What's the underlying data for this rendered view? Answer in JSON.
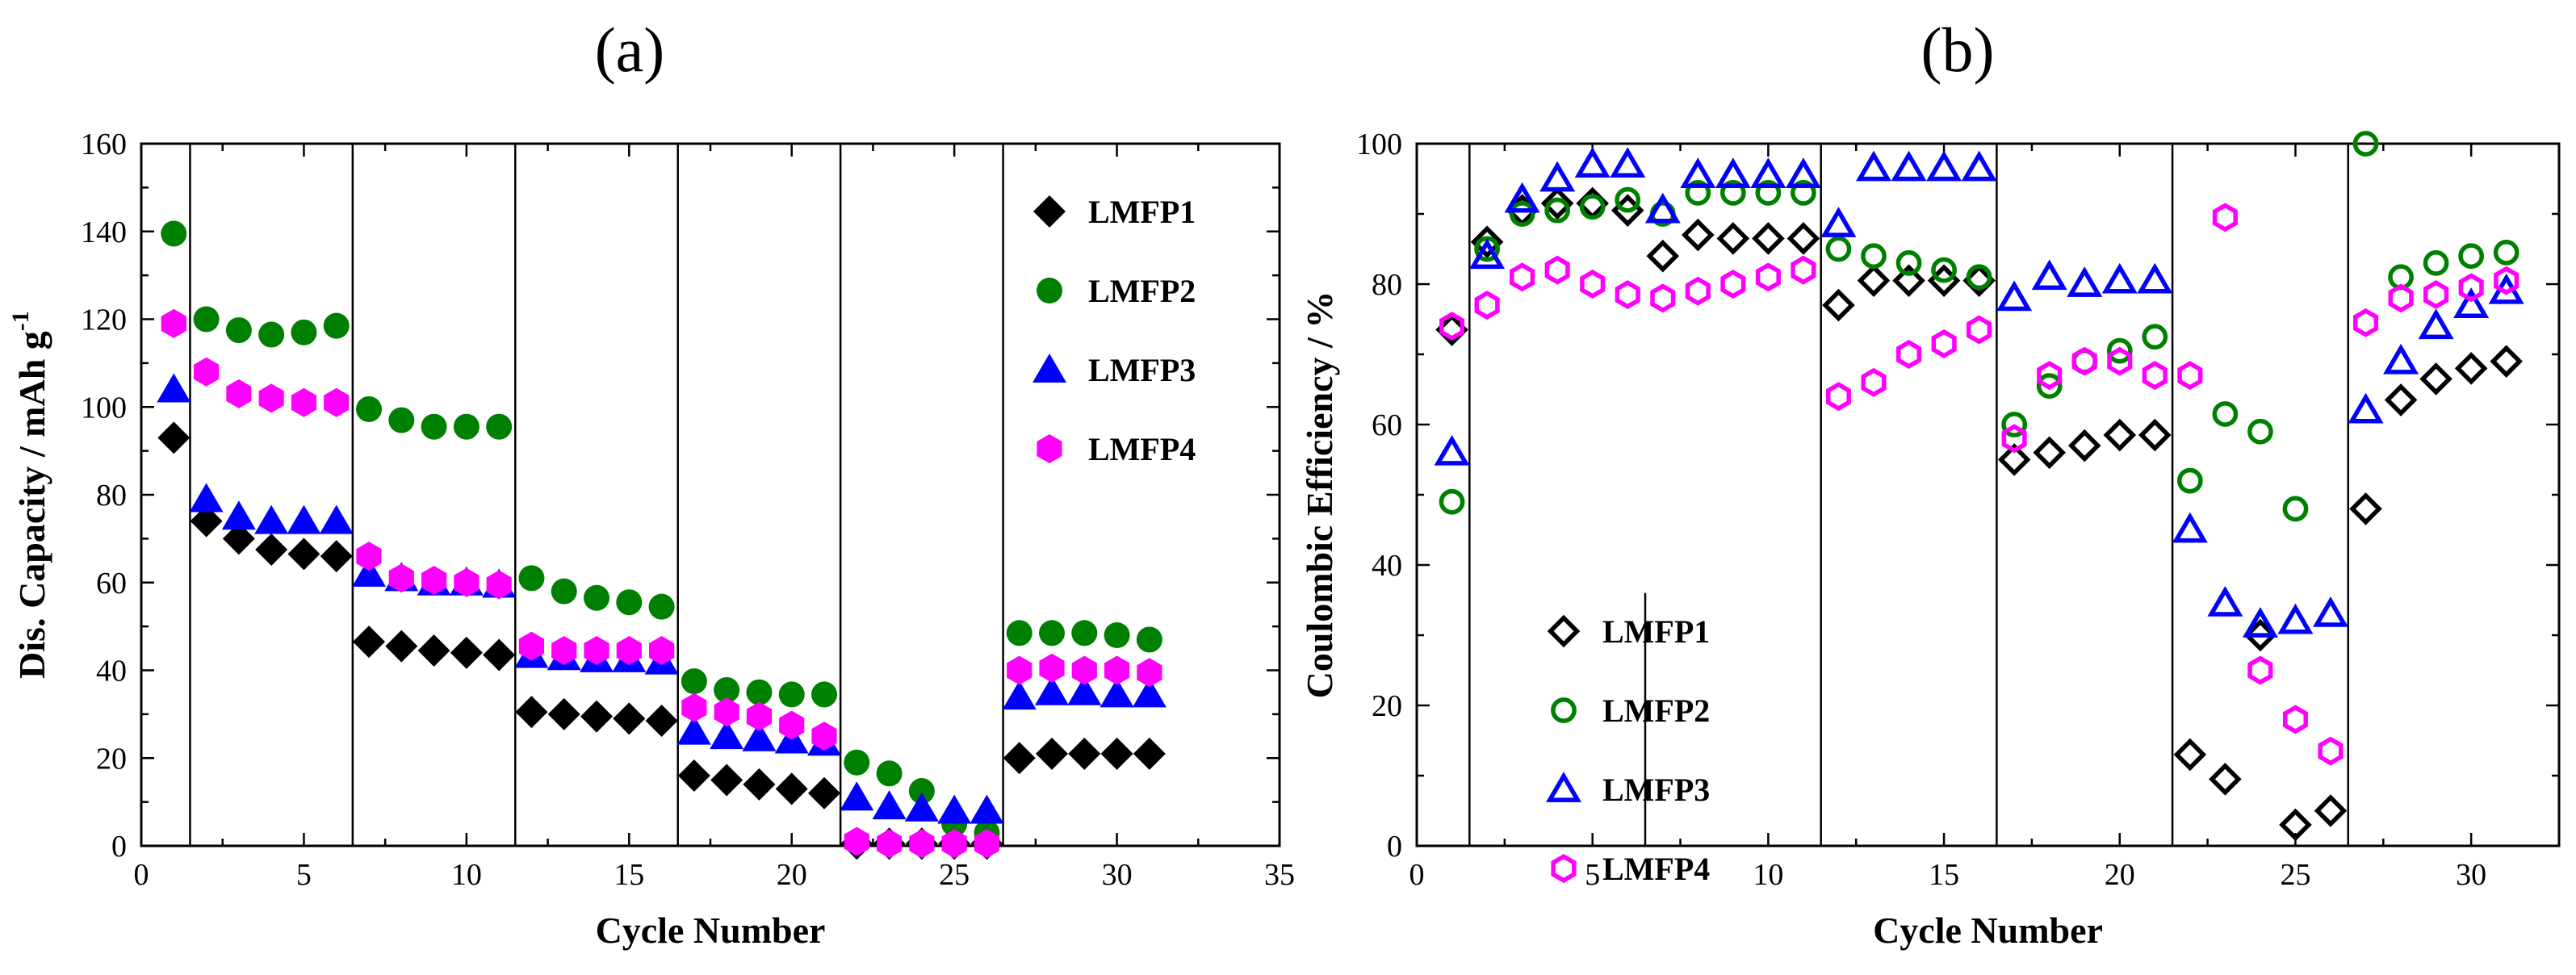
{
  "chart_data": [
    {
      "panel_label": "(a)",
      "type": "scatter",
      "xlabel": "Cycle Number",
      "ylabel": "Dis. Capacity / mAh g",
      "ylabel_superscript": "-1",
      "xlim": [
        0,
        35
      ],
      "ylim": [
        0,
        160
      ],
      "xticks": [
        0,
        5,
        10,
        15,
        20,
        25,
        30,
        35
      ],
      "yticks": [
        0,
        20,
        40,
        60,
        80,
        100,
        120,
        140,
        160
      ],
      "grid": false,
      "legend_position": "top-right",
      "separators_x": [
        1.5,
        6.5,
        11.5,
        16.5,
        21.5,
        26.5
      ],
      "series": [
        {
          "name": "LMFP1",
          "marker": "diamond",
          "filled": true,
          "color": "#000000",
          "x": [
            1,
            2,
            3,
            4,
            5,
            6,
            7,
            8,
            9,
            10,
            11,
            12,
            13,
            14,
            15,
            16,
            17,
            18,
            19,
            20,
            21,
            22,
            23,
            24,
            25,
            26,
            27,
            28,
            29,
            30,
            31
          ],
          "values": [
            93,
            74,
            70,
            67.5,
            66.5,
            66,
            46.5,
            45.5,
            44.5,
            44,
            43.5,
            30.5,
            30,
            29.5,
            29,
            28.5,
            16,
            15,
            14,
            13,
            12,
            0.5,
            0.5,
            0.5,
            0.5,
            0.5,
            20,
            21,
            21,
            21,
            21
          ]
        },
        {
          "name": "LMFP2",
          "marker": "circle",
          "filled": true,
          "color": "#008000",
          "x": [
            1,
            2,
            3,
            4,
            5,
            6,
            7,
            8,
            9,
            10,
            11,
            12,
            13,
            14,
            15,
            16,
            17,
            18,
            19,
            20,
            21,
            22,
            23,
            24,
            25,
            26,
            27,
            28,
            29,
            30,
            31
          ],
          "values": [
            139.5,
            120,
            117.5,
            116.5,
            117,
            118.5,
            99.5,
            97,
            95.5,
            95.5,
            95.5,
            61,
            58,
            56.5,
            55.5,
            54.5,
            37.5,
            35.5,
            35,
            34.5,
            34.5,
            19,
            16.5,
            12.5,
            5,
            3,
            48.5,
            48.5,
            48.5,
            48,
            47
          ]
        },
        {
          "name": "LMFP3",
          "marker": "triangle",
          "filled": true,
          "color": "#0000ff",
          "x": [
            1,
            2,
            3,
            4,
            5,
            6,
            7,
            8,
            9,
            10,
            11,
            12,
            13,
            14,
            15,
            16,
            17,
            18,
            19,
            20,
            21,
            22,
            23,
            24,
            25,
            26,
            27,
            28,
            29,
            30,
            31
          ],
          "values": [
            104,
            79,
            75,
            74,
            74,
            74,
            62,
            61,
            60,
            60,
            59.5,
            43.5,
            43,
            42.5,
            42.5,
            42,
            26,
            25,
            24.5,
            24,
            23.5,
            11,
            9,
            8.5,
            8,
            8,
            34,
            35,
            35,
            34.5,
            34.5
          ]
        },
        {
          "name": "LMFP4",
          "marker": "hexagon",
          "filled": true,
          "color": "#ff00ff",
          "x": [
            1,
            2,
            3,
            4,
            5,
            6,
            7,
            8,
            9,
            10,
            11,
            12,
            13,
            14,
            15,
            16,
            17,
            18,
            19,
            20,
            21,
            22,
            23,
            24,
            25,
            26,
            27,
            28,
            29,
            30,
            31
          ],
          "values": [
            119,
            108,
            103,
            102,
            101,
            101,
            66,
            61,
            60.5,
            60,
            59.5,
            45.5,
            44.5,
            44.5,
            44.5,
            44.5,
            31.5,
            30.5,
            29.5,
            27.5,
            25,
            1,
            0.5,
            0.5,
            0.5,
            0.5,
            40,
            40.5,
            40,
            40,
            39.5
          ]
        }
      ]
    },
    {
      "panel_label": "(b)",
      "type": "scatter",
      "xlabel": "Cycle Number",
      "ylabel": "Coulombic Efficiency / %",
      "xlim": [
        0,
        32.5
      ],
      "ylim": [
        0,
        100
      ],
      "xticks": [
        0,
        5,
        10,
        15,
        20,
        25,
        30
      ],
      "yticks": [
        0,
        20,
        40,
        60,
        80,
        100
      ],
      "grid": false,
      "legend_position": "bottom-left",
      "separators_x": [
        1.5,
        6.5,
        11.5,
        16.5,
        21.5,
        26.5
      ],
      "series": [
        {
          "name": "LMFP1",
          "marker": "diamond",
          "filled": false,
          "color": "#000000",
          "x": [
            1,
            2,
            3,
            4,
            5,
            6,
            7,
            8,
            9,
            10,
            11,
            12,
            13,
            14,
            15,
            16,
            17,
            18,
            19,
            20,
            21,
            22,
            23,
            24,
            25,
            26,
            27,
            28,
            29,
            30,
            31
          ],
          "values": [
            73.5,
            86,
            90.5,
            91.5,
            91.5,
            90.5,
            84,
            87,
            86.5,
            86.5,
            86.5,
            77,
            80.5,
            80.5,
            80.5,
            80.5,
            55,
            56,
            57,
            58.5,
            58.5,
            13,
            9.5,
            30,
            3,
            5,
            48,
            63.5,
            66.5,
            68,
            69
          ]
        },
        {
          "name": "LMFP2",
          "marker": "circle",
          "filled": false,
          "color": "#008000",
          "x": [
            1,
            2,
            3,
            4,
            5,
            6,
            7,
            8,
            9,
            10,
            11,
            12,
            13,
            14,
            15,
            16,
            17,
            18,
            19,
            20,
            21,
            22,
            23,
            24,
            25,
            26,
            27,
            28,
            29,
            30,
            31
          ],
          "values": [
            49,
            85,
            90,
            90.5,
            91,
            92,
            90,
            93,
            93,
            93,
            93,
            85,
            84,
            83,
            82,
            81,
            60,
            65.5,
            69,
            70.5,
            72.5,
            52,
            61.5,
            59,
            48,
            null,
            100,
            81,
            83,
            84,
            84.5
          ]
        },
        {
          "name": "LMFP3",
          "marker": "triangle",
          "filled": false,
          "color": "#0000ff",
          "x": [
            1,
            2,
            3,
            4,
            5,
            6,
            7,
            8,
            9,
            10,
            11,
            12,
            13,
            14,
            15,
            16,
            17,
            18,
            19,
            20,
            21,
            22,
            23,
            24,
            25,
            26,
            27,
            28,
            29,
            30,
            31
          ],
          "values": [
            56,
            84,
            92,
            95,
            97,
            97,
            90.5,
            95.5,
            95.5,
            95.5,
            95.5,
            88.5,
            96.5,
            96.5,
            96.5,
            96.5,
            78,
            81,
            80,
            80.5,
            80.5,
            45,
            34.5,
            31.5,
            32,
            33,
            62,
            69,
            74,
            77,
            79
          ]
        },
        {
          "name": "LMFP4",
          "marker": "hexagon",
          "filled": false,
          "color": "#ff00ff",
          "x": [
            1,
            2,
            3,
            4,
            5,
            6,
            7,
            8,
            9,
            10,
            11,
            12,
            13,
            14,
            15,
            16,
            17,
            18,
            19,
            20,
            21,
            22,
            23,
            24,
            25,
            26,
            27,
            28,
            29,
            30,
            31
          ],
          "values": [
            74,
            77,
            81,
            82,
            80,
            78.5,
            78,
            79,
            80,
            81,
            82,
            64,
            66,
            70,
            71.5,
            73.5,
            58,
            67,
            69,
            69,
            67,
            67,
            89.5,
            25,
            18,
            13.5,
            74.5,
            78,
            78.5,
            79.5,
            80.5
          ]
        }
      ]
    }
  ]
}
